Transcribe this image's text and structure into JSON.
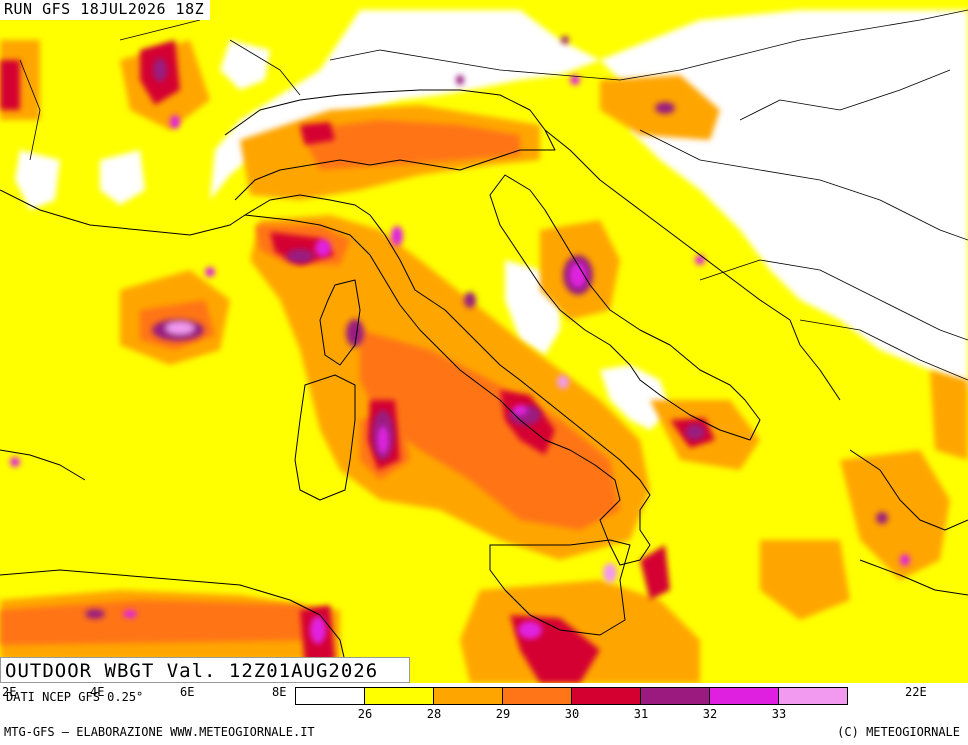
{
  "header": {
    "run_title": "RUN GFS 18JUL2026 18Z"
  },
  "product": {
    "title": "OUTDOOR WBGT Val. 12Z01AUG2026"
  },
  "source_note": "DATI NCEP GFS 0.25°",
  "longitude_labels": [
    "2E",
    "4E",
    "6E",
    "8E",
    "22E"
  ],
  "legend": {
    "colors": [
      "#ffffff",
      "#ffff00",
      "#ffa500",
      "#ff7518",
      "#d40030",
      "#9a1a80",
      "#e020e0",
      "#f29af0"
    ],
    "ticks": [
      "26",
      "28",
      "29",
      "30",
      "31",
      "32",
      "33"
    ]
  },
  "footer": {
    "left": "MTG-GFS – ELABORAZIONE WWW.METEOGIORNALE.IT",
    "right": "(C) METEOGIORNALE"
  }
}
